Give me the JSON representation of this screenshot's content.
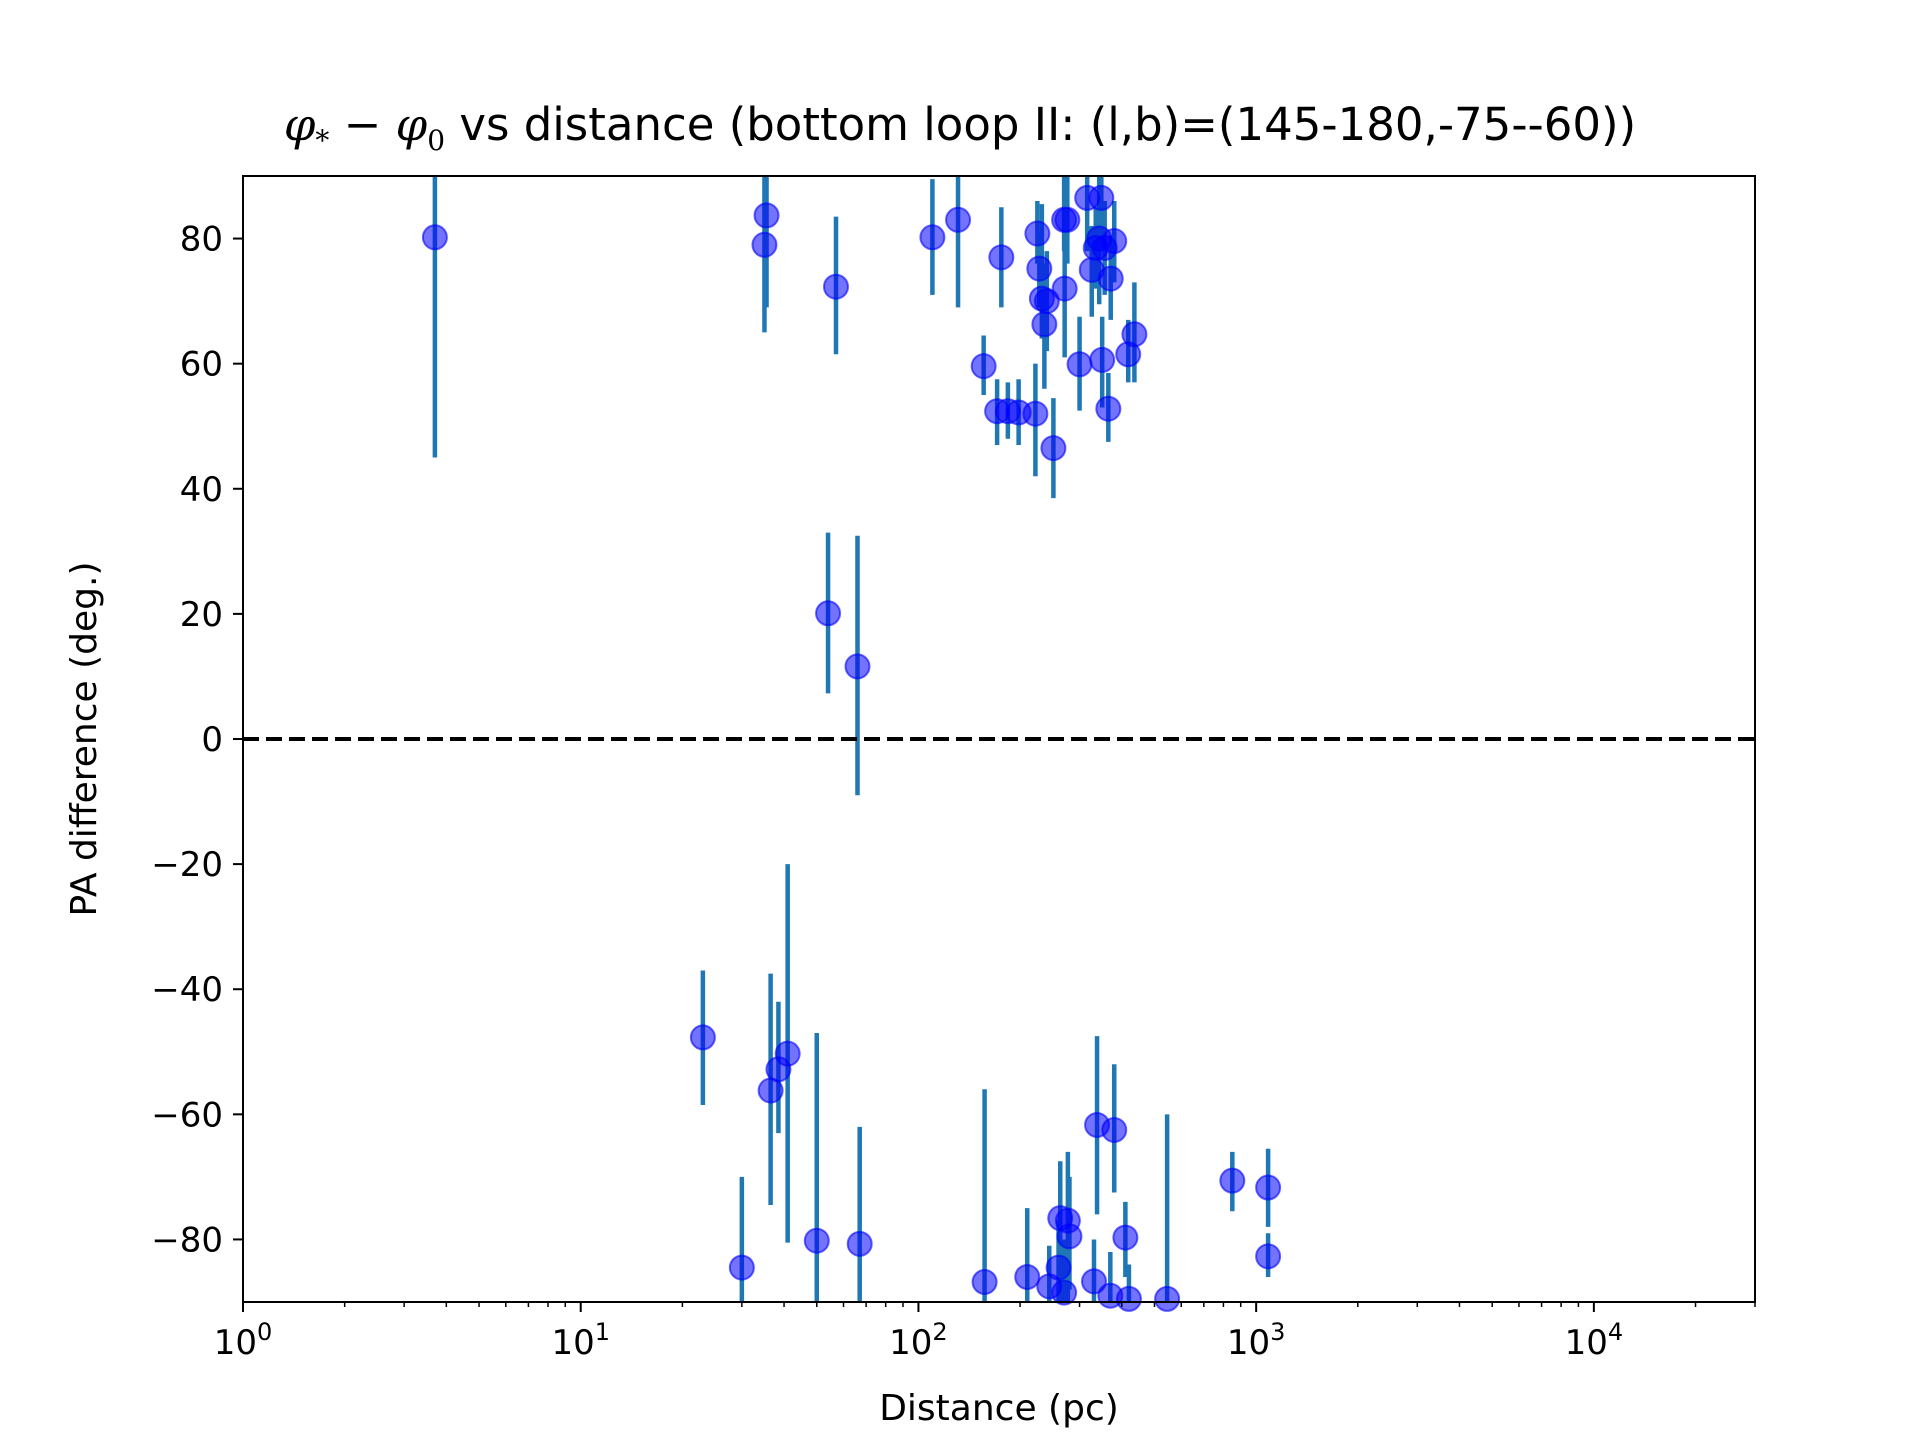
{
  "chart_data": {
    "type": "scatter",
    "title_math": {
      "phi": "φ",
      "star_sub": "*",
      "minus": "−",
      "zero_sub": "0"
    },
    "title_text": "vs distance (bottom loop II: (l,b)=(145-180,-75--60))",
    "xlabel": "Distance (pc)",
    "ylabel": "PA difference (deg.)",
    "xscale": "log",
    "xlim": [
      1,
      30000
    ],
    "ylim": [
      -90,
      90
    ],
    "x_tick_base": "10",
    "x_tick_exponents": [
      "0",
      "1",
      "2",
      "3",
      "4"
    ],
    "y_ticks": [
      -80,
      -60,
      -40,
      -20,
      0,
      20,
      40,
      60,
      80
    ],
    "y_tick_labels": [
      "−80",
      "−60",
      "−40",
      "−20",
      "0",
      "20",
      "40",
      "60",
      "80"
    ],
    "reference_line": {
      "y": 0,
      "style": "dashed",
      "color": "#000000"
    },
    "marker_color": "#0000ff",
    "errorbar_color": "#1f77b4",
    "points": [
      {
        "x": 3.7,
        "y": 80.2,
        "ylo": 45.0,
        "yhi": 95.0
      },
      {
        "x": 35.5,
        "y": 83.7,
        "ylo": 69.0,
        "yhi": 95.0
      },
      {
        "x": 35.0,
        "y": 79.0,
        "ylo": 65.0,
        "yhi": 93.0
      },
      {
        "x": 57.0,
        "y": 72.3,
        "ylo": 61.5,
        "yhi": 83.5
      },
      {
        "x": 54.0,
        "y": 20.1,
        "ylo": 7.3,
        "yhi": 33.0
      },
      {
        "x": 66.0,
        "y": 11.6,
        "ylo": -9.0,
        "yhi": 32.5
      },
      {
        "x": 110.0,
        "y": 80.2,
        "ylo": 71.0,
        "yhi": 89.5
      },
      {
        "x": 131.0,
        "y": 83.0,
        "ylo": 69.0,
        "yhi": 96.0
      },
      {
        "x": 156.0,
        "y": 59.6,
        "ylo": 55.0,
        "yhi": 64.5
      },
      {
        "x": 171.0,
        "y": 52.4,
        "ylo": 47.0,
        "yhi": 57.5
      },
      {
        "x": 176.0,
        "y": 77.0,
        "ylo": 69.0,
        "yhi": 85.0
      },
      {
        "x": 184.0,
        "y": 52.4,
        "ylo": 48.0,
        "yhi": 57.0
      },
      {
        "x": 198.0,
        "y": 52.2,
        "ylo": 47.0,
        "yhi": 57.5
      },
      {
        "x": 222.0,
        "y": 52.0,
        "ylo": 42.0,
        "yhi": 60.0
      },
      {
        "x": 225.0,
        "y": 80.8,
        "ylo": 76.0,
        "yhi": 86.0
      },
      {
        "x": 228.0,
        "y": 75.2,
        "ylo": 69.0,
        "yhi": 81.0
      },
      {
        "x": 232.0,
        "y": 70.4,
        "ylo": 64.0,
        "yhi": 85.5
      },
      {
        "x": 236.0,
        "y": 66.3,
        "ylo": 56.0,
        "yhi": 76.0
      },
      {
        "x": 240.0,
        "y": 70.0,
        "ylo": 62.0,
        "yhi": 78.0
      },
      {
        "x": 251.0,
        "y": 46.5,
        "ylo": 38.5,
        "yhi": 54.5
      },
      {
        "x": 270.0,
        "y": 83.0,
        "ylo": 78.0,
        "yhi": 92.0
      },
      {
        "x": 271.0,
        "y": 72.0,
        "ylo": 61.0,
        "yhi": 82.0
      },
      {
        "x": 276.0,
        "y": 83.0,
        "ylo": 76.0,
        "yhi": 92.0
      },
      {
        "x": 300.0,
        "y": 59.9,
        "ylo": 52.5,
        "yhi": 67.5
      },
      {
        "x": 316.0,
        "y": 86.5,
        "ylo": 78.0,
        "yhi": 95.0
      },
      {
        "x": 326.0,
        "y": 75.0,
        "ylo": 67.5,
        "yhi": 82.0
      },
      {
        "x": 335.0,
        "y": 78.5,
        "ylo": 72.0,
        "yhi": 85.0
      },
      {
        "x": 343.0,
        "y": 80.0,
        "ylo": 69.5,
        "yhi": 90.0
      },
      {
        "x": 348.0,
        "y": 86.5,
        "ylo": 78.0,
        "yhi": 95.0
      },
      {
        "x": 350.0,
        "y": 60.6,
        "ylo": 53.0,
        "yhi": 67.5
      },
      {
        "x": 356.0,
        "y": 78.5,
        "ylo": 71.0,
        "yhi": 86.0
      },
      {
        "x": 365.0,
        "y": 52.8,
        "ylo": 47.5,
        "yhi": 58.5
      },
      {
        "x": 371.0,
        "y": 73.6,
        "ylo": 67.0,
        "yhi": 80.5
      },
      {
        "x": 380.0,
        "y": 79.6,
        "ylo": 73.0,
        "yhi": 86.0
      },
      {
        "x": 418.0,
        "y": 61.5,
        "ylo": 57.0,
        "yhi": 67.0
      },
      {
        "x": 436.0,
        "y": 64.7,
        "ylo": 57.0,
        "yhi": 73.0
      },
      {
        "x": 23.0,
        "y": -47.7,
        "ylo": -58.5,
        "yhi": -37.0
      },
      {
        "x": 30.0,
        "y": -84.5,
        "ylo": -92.0,
        "yhi": -70.0
      },
      {
        "x": 36.5,
        "y": -56.2,
        "ylo": -74.5,
        "yhi": -37.5
      },
      {
        "x": 38.5,
        "y": -52.8,
        "ylo": -63.0,
        "yhi": -42.0
      },
      {
        "x": 41.0,
        "y": -50.3,
        "ylo": -80.5,
        "yhi": -20.0
      },
      {
        "x": 50.0,
        "y": -80.2,
        "ylo": -94.0,
        "yhi": -47.0
      },
      {
        "x": 67.0,
        "y": -80.7,
        "ylo": -95.0,
        "yhi": -62.0
      },
      {
        "x": 157.0,
        "y": -86.8,
        "ylo": -93.0,
        "yhi": -56.0
      },
      {
        "x": 210.0,
        "y": -86.0,
        "ylo": -92.0,
        "yhi": -75.0
      },
      {
        "x": 244.0,
        "y": -87.5,
        "ylo": -93.0,
        "yhi": -81.0
      },
      {
        "x": 260.0,
        "y": -84.5,
        "ylo": -92.0,
        "yhi": -77.0
      },
      {
        "x": 263.0,
        "y": -76.6,
        "ylo": -90.0,
        "yhi": -67.5
      },
      {
        "x": 270.0,
        "y": -88.5,
        "ylo": -92.0,
        "yhi": -80.0
      },
      {
        "x": 277.0,
        "y": -77.0,
        "ylo": -92.0,
        "yhi": -66.0
      },
      {
        "x": 280.0,
        "y": -79.5,
        "ylo": -88.0,
        "yhi": -70.0
      },
      {
        "x": 331.0,
        "y": -86.7,
        "ylo": -93.0,
        "yhi": -80.0
      },
      {
        "x": 338.0,
        "y": -61.7,
        "ylo": -76.0,
        "yhi": -47.5
      },
      {
        "x": 370.0,
        "y": -89.0,
        "ylo": -93.0,
        "yhi": -82.0
      },
      {
        "x": 380.0,
        "y": -62.5,
        "ylo": -72.5,
        "yhi": -52.0
      },
      {
        "x": 410.0,
        "y": -79.7,
        "ylo": -86.0,
        "yhi": -74.0
      },
      {
        "x": 420.0,
        "y": -89.5,
        "ylo": -93.0,
        "yhi": -84.0
      },
      {
        "x": 545.0,
        "y": -89.5,
        "ylo": -93.0,
        "yhi": -60.0
      },
      {
        "x": 850.0,
        "y": -70.6,
        "ylo": -75.5,
        "yhi": -66.0
      },
      {
        "x": 1085.0,
        "y": -71.7,
        "ylo": -78.0,
        "yhi": -65.5
      },
      {
        "x": 1085.0,
        "y": -82.7,
        "ylo": -86.0,
        "yhi": -79.0
      }
    ]
  }
}
